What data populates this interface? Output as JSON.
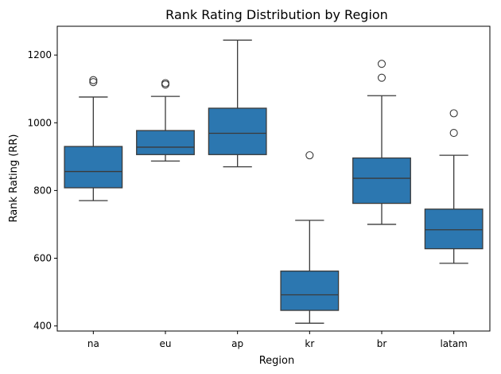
{
  "chart_data": {
    "type": "box",
    "title": "Rank Rating Distribution by Region",
    "xlabel": "Region",
    "ylabel": "Rank Rating (RR)",
    "categories": [
      "na",
      "eu",
      "ap",
      "kr",
      "br",
      "latam"
    ],
    "ylim": [
      385,
      1285
    ],
    "yticks": [
      400,
      600,
      800,
      1000,
      1200
    ],
    "grid": false,
    "legend": "none",
    "box_color": "#2c77b0",
    "line_color": "#3a3a3a",
    "boxes": [
      {
        "category": "na",
        "whisker_low": 770,
        "q1": 808,
        "median": 856,
        "q3": 930,
        "whisker_high": 1076,
        "outliers": [
          1120,
          1126
        ]
      },
      {
        "category": "eu",
        "whisker_low": 887,
        "q1": 906,
        "median": 928,
        "q3": 977,
        "whisker_high": 1078,
        "outliers": [
          1113,
          1117
        ]
      },
      {
        "category": "ap",
        "whisker_low": 870,
        "q1": 906,
        "median": 969,
        "q3": 1043,
        "whisker_high": 1244,
        "outliers": []
      },
      {
        "category": "kr",
        "whisker_low": 408,
        "q1": 446,
        "median": 492,
        "q3": 562,
        "whisker_high": 712,
        "outliers": [
          904
        ]
      },
      {
        "category": "br",
        "whisker_low": 700,
        "q1": 762,
        "median": 836,
        "q3": 896,
        "whisker_high": 1080,
        "outliers": [
          1133,
          1174
        ]
      },
      {
        "category": "latam",
        "whisker_low": 585,
        "q1": 628,
        "median": 684,
        "q3": 745,
        "whisker_high": 904,
        "outliers": [
          970,
          1028
        ]
      }
    ]
  }
}
